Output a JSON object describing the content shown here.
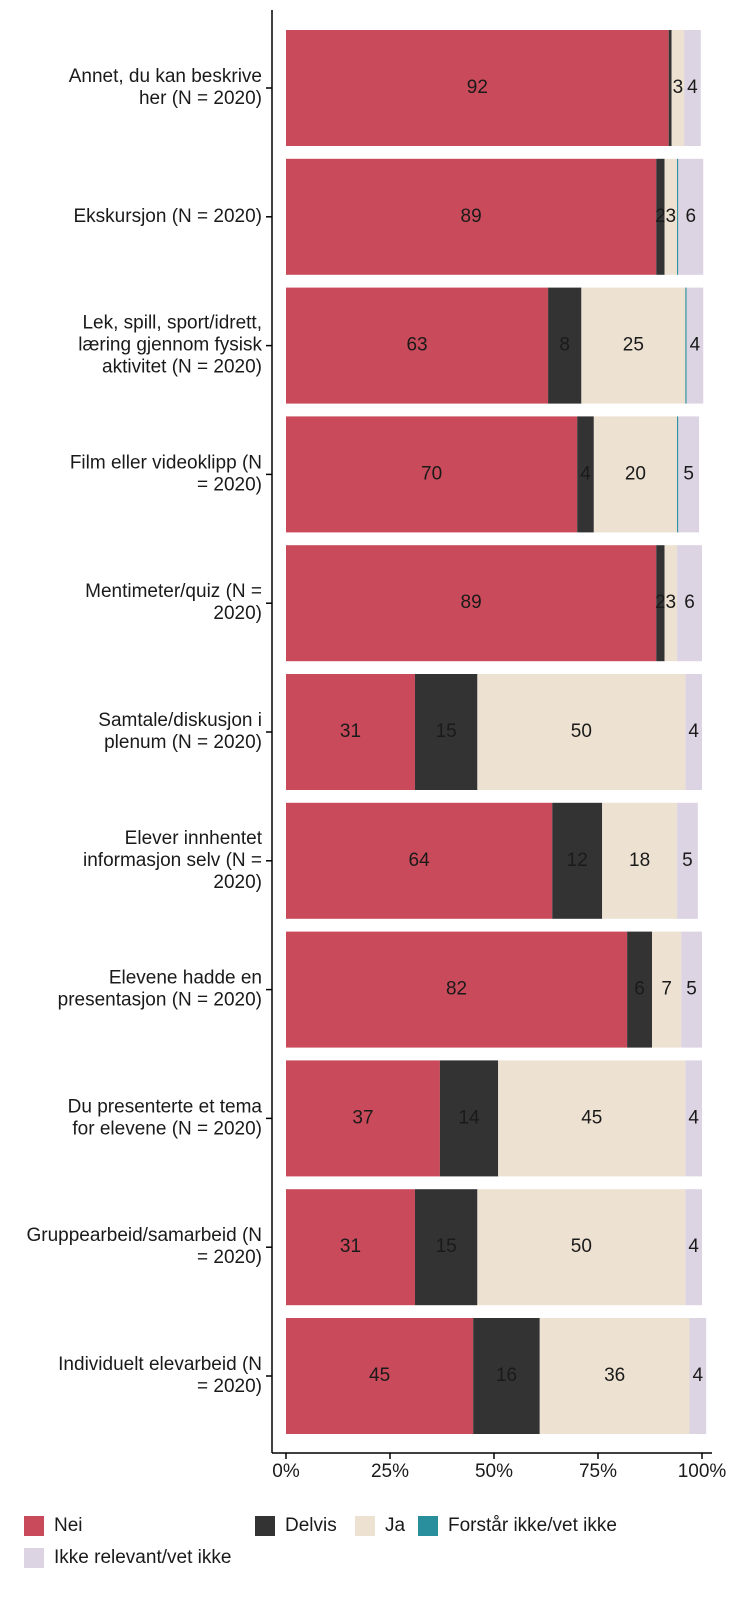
{
  "chart_data": {
    "type": "stacked-bar-horizontal",
    "categories": [
      "Annet, du kan beskrive her (N = 2020)",
      "Ekskursjon (N = 2020)",
      "Lek, spill, sport/idrett, læring gjennom fysisk aktivitet (N = 2020)",
      "Film eller videoklipp (N = 2020)",
      "Mentimeter/quiz (N = 2020)",
      "Samtale/diskusjon i plenum (N = 2020)",
      "Elever innhentet informasjon selv (N = 2020)",
      "Elevene hadde en presentasjon (N = 2020)",
      "Du presenterte et tema for elevene (N = 2020)",
      "Gruppearbeid/samarbeid (N = 2020)",
      "Individuelt elevarbeid (N = 2020)"
    ],
    "series": [
      {
        "name": "Nei",
        "color": "#c94a5a",
        "values": [
          92,
          89,
          63,
          70,
          89,
          31,
          64,
          82,
          37,
          31,
          45
        ]
      },
      {
        "name": "Delvis",
        "color": "#333333",
        "values": [
          0.7,
          2,
          8,
          4,
          2,
          15,
          12,
          6,
          14,
          15,
          16
        ]
      },
      {
        "name": "Ja",
        "color": "#ede1d1",
        "values": [
          3,
          3,
          25,
          20,
          3,
          50,
          18,
          7,
          45,
          50,
          36
        ]
      },
      {
        "name": "Forstår ikke/vet ikke",
        "color": "#2a8f9c",
        "values": [
          0,
          0.3,
          0.3,
          0.3,
          0,
          0,
          0,
          0,
          0,
          0,
          0
        ]
      },
      {
        "name": "Ikke relevant/vet ikke",
        "color": "#dcd4e3",
        "values": [
          4,
          6,
          4,
          5,
          6,
          4,
          5,
          5,
          4,
          4,
          4
        ]
      }
    ],
    "xlim": [
      0,
      100
    ],
    "xticks": [
      {
        "value": 0,
        "label": "0%"
      },
      {
        "value": 25,
        "label": "25%"
      },
      {
        "value": 50,
        "label": "50%"
      },
      {
        "value": 75,
        "label": "75%"
      },
      {
        "value": 100,
        "label": "100%"
      }
    ]
  }
}
